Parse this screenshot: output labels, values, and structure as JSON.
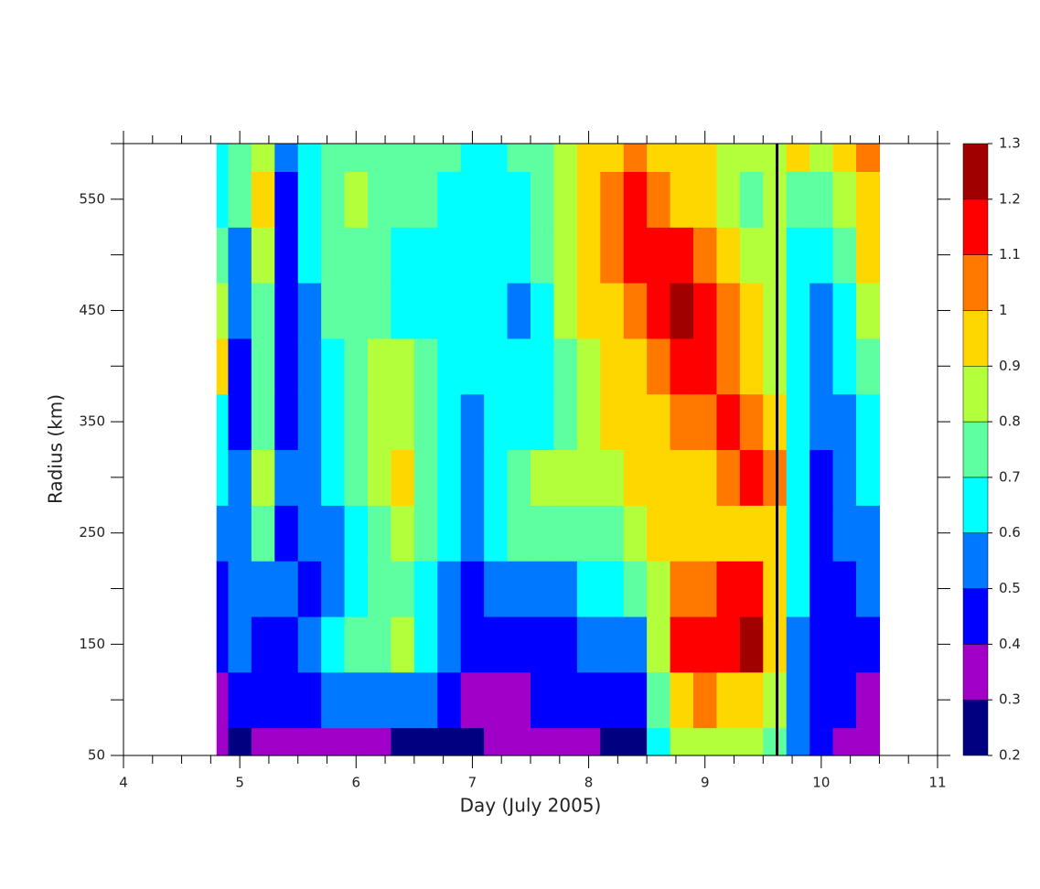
{
  "chart_data": {
    "type": "contour",
    "xlabel": "Day (July 2005)",
    "ylabel": "Radius (km)",
    "x": [
      4.8,
      5.0,
      5.2,
      5.4,
      5.6,
      5.8,
      6.0,
      6.2,
      6.4,
      6.6,
      6.8,
      7.0,
      7.2,
      7.4,
      7.6,
      7.8,
      8.0,
      8.2,
      8.4,
      8.6,
      8.8,
      9.0,
      9.2,
      9.4,
      9.6,
      9.8,
      10.0,
      10.2,
      10.4
    ],
    "y": [
      50,
      100,
      150,
      200,
      250,
      300,
      350,
      400,
      450,
      500,
      550,
      600
    ],
    "z": [
      [
        0.35,
        0.25,
        0.35,
        0.35,
        0.35,
        0.35,
        0.35,
        0.35,
        0.25,
        0.25,
        0.25,
        0.25,
        0.35,
        0.35,
        0.35,
        0.35,
        0.35,
        0.25,
        0.25,
        0.65,
        0.85,
        0.85,
        0.85,
        0.85,
        0.75,
        0.55,
        0.45,
        0.35,
        0.35
      ],
      [
        0.35,
        0.45,
        0.45,
        0.45,
        0.45,
        0.55,
        0.55,
        0.55,
        0.55,
        0.55,
        0.45,
        0.35,
        0.35,
        0.35,
        0.45,
        0.45,
        0.45,
        0.45,
        0.45,
        0.75,
        0.95,
        1.05,
        0.95,
        0.95,
        0.85,
        0.55,
        0.45,
        0.45,
        0.35
      ],
      [
        0.45,
        0.55,
        0.45,
        0.45,
        0.55,
        0.65,
        0.75,
        0.75,
        0.85,
        0.65,
        0.55,
        0.45,
        0.45,
        0.45,
        0.45,
        0.45,
        0.55,
        0.55,
        0.55,
        0.85,
        1.15,
        1.15,
        1.15,
        1.25,
        0.95,
        0.55,
        0.45,
        0.45,
        0.45
      ],
      [
        0.45,
        0.55,
        0.55,
        0.55,
        0.45,
        0.55,
        0.65,
        0.75,
        0.75,
        0.65,
        0.55,
        0.45,
        0.55,
        0.55,
        0.55,
        0.55,
        0.65,
        0.65,
        0.75,
        0.85,
        1.05,
        1.05,
        1.15,
        1.15,
        0.95,
        0.65,
        0.45,
        0.45,
        0.55
      ],
      [
        0.55,
        0.55,
        0.75,
        0.45,
        0.55,
        0.55,
        0.65,
        0.75,
        0.85,
        0.75,
        0.65,
        0.55,
        0.65,
        0.75,
        0.75,
        0.75,
        0.75,
        0.75,
        0.85,
        0.95,
        0.95,
        0.95,
        0.95,
        0.95,
        0.95,
        0.65,
        0.45,
        0.55,
        0.55
      ],
      [
        0.65,
        0.55,
        0.85,
        0.55,
        0.55,
        0.65,
        0.75,
        0.85,
        0.95,
        0.75,
        0.65,
        0.55,
        0.65,
        0.75,
        0.85,
        0.85,
        0.85,
        0.85,
        0.95,
        0.95,
        0.95,
        0.95,
        1.05,
        1.15,
        1.05,
        0.65,
        0.45,
        0.55,
        0.65
      ],
      [
        0.65,
        0.45,
        0.75,
        0.45,
        0.55,
        0.65,
        0.75,
        0.85,
        0.85,
        0.75,
        0.65,
        0.55,
        0.65,
        0.65,
        0.65,
        0.75,
        0.85,
        0.95,
        0.95,
        0.95,
        1.05,
        1.05,
        1.15,
        1.05,
        0.95,
        0.65,
        0.55,
        0.55,
        0.65
      ],
      [
        0.95,
        0.45,
        0.75,
        0.45,
        0.55,
        0.65,
        0.75,
        0.85,
        0.85,
        0.75,
        0.65,
        0.65,
        0.65,
        0.65,
        0.65,
        0.75,
        0.85,
        0.95,
        0.95,
        1.05,
        1.15,
        1.15,
        1.05,
        0.95,
        0.85,
        0.65,
        0.55,
        0.65,
        0.75
      ],
      [
        0.85,
        0.55,
        0.75,
        0.45,
        0.55,
        0.75,
        0.75,
        0.75,
        0.65,
        0.65,
        0.65,
        0.65,
        0.65,
        0.55,
        0.65,
        0.85,
        0.95,
        0.95,
        1.05,
        1.15,
        1.25,
        1.15,
        1.05,
        0.95,
        0.85,
        0.65,
        0.55,
        0.65,
        0.85
      ],
      [
        0.75,
        0.55,
        0.85,
        0.45,
        0.65,
        0.75,
        0.75,
        0.75,
        0.65,
        0.65,
        0.65,
        0.65,
        0.65,
        0.65,
        0.75,
        0.85,
        0.95,
        1.05,
        1.15,
        1.15,
        1.15,
        1.05,
        0.95,
        0.85,
        0.85,
        0.65,
        0.65,
        0.75,
        0.95
      ],
      [
        0.65,
        0.75,
        0.95,
        0.45,
        0.65,
        0.75,
        0.85,
        0.75,
        0.75,
        0.75,
        0.65,
        0.65,
        0.65,
        0.65,
        0.75,
        0.85,
        0.95,
        1.05,
        1.15,
        1.05,
        0.95,
        0.95,
        0.85,
        0.75,
        0.85,
        0.75,
        0.75,
        0.85,
        0.95
      ],
      [
        0.65,
        0.75,
        0.85,
        0.55,
        0.65,
        0.75,
        0.75,
        0.75,
        0.75,
        0.75,
        0.75,
        0.65,
        0.65,
        0.75,
        0.75,
        0.85,
        0.95,
        0.95,
        1.05,
        0.95,
        0.95,
        0.95,
        0.85,
        0.85,
        0.85,
        0.95,
        0.85,
        0.95,
        1.05
      ]
    ],
    "levels": [
      0.2,
      0.3,
      0.4,
      0.5,
      0.6,
      0.7,
      0.8,
      0.9,
      1,
      1.1,
      1.2,
      1.3
    ],
    "colors": [
      "#000080",
      "#a000c8",
      "#0000ff",
      "#0078ff",
      "#00ffff",
      "#5effa0",
      "#b4ff3c",
      "#ffd700",
      "#ff7800",
      "#ff0000",
      "#a00000"
    ],
    "xlim": [
      4,
      11
    ],
    "ylim": [
      50,
      600
    ],
    "xticks": [
      4,
      5,
      6,
      7,
      8,
      9,
      10,
      11
    ],
    "yticks": [
      150,
      250,
      350,
      450,
      550,
      50
    ],
    "xminorticks": [
      4.25,
      4.5,
      4.75,
      5.25,
      5.5,
      5.75,
      6.25,
      6.5,
      6.75,
      7.25,
      7.5,
      7.75,
      8.25,
      8.5,
      8.75,
      9.25,
      9.5,
      9.75,
      10.25,
      10.5,
      10.75
    ],
    "yminorticks": [
      100,
      200,
      300,
      400,
      500,
      600
    ],
    "marker_x": 9.62
  }
}
